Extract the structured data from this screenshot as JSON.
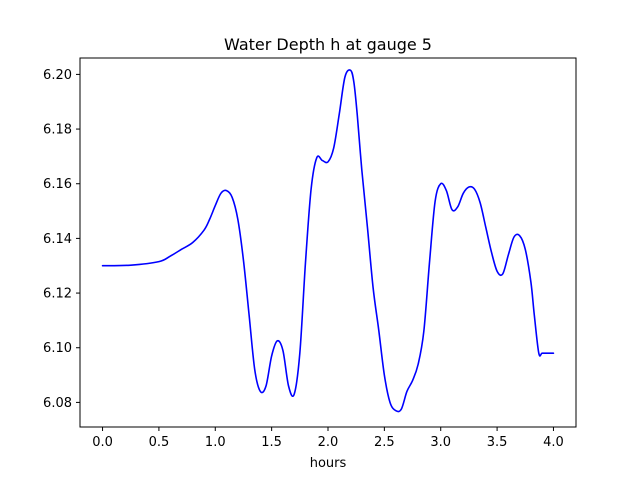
{
  "chart_data": {
    "type": "line",
    "title": "Water Depth h at gauge 5",
    "xlabel": "hours",
    "ylabel": "",
    "xlim": [
      -0.2,
      4.2
    ],
    "ylim": [
      6.071,
      6.206
    ],
    "xticks": [
      0.0,
      0.5,
      1.0,
      1.5,
      2.0,
      2.5,
      3.0,
      3.5,
      4.0
    ],
    "xtick_labels": [
      "0.0",
      "0.5",
      "1.0",
      "1.5",
      "2.0",
      "2.5",
      "3.0",
      "3.5",
      "4.0"
    ],
    "yticks": [
      6.08,
      6.1,
      6.12,
      6.14,
      6.16,
      6.18,
      6.2
    ],
    "ytick_labels": [
      "6.08",
      "6.10",
      "6.12",
      "6.14",
      "6.16",
      "6.18",
      "6.20"
    ],
    "grid": false,
    "series": [
      {
        "color": "#0000ff",
        "x": [
          0.0,
          0.25,
          0.5,
          0.6,
          0.7,
          0.8,
          0.9,
          0.95,
          1.0,
          1.05,
          1.1,
          1.15,
          1.2,
          1.25,
          1.3,
          1.35,
          1.4,
          1.45,
          1.5,
          1.55,
          1.6,
          1.65,
          1.7,
          1.75,
          1.8,
          1.85,
          1.9,
          1.95,
          2.0,
          2.05,
          2.1,
          2.15,
          2.2,
          2.23,
          2.26,
          2.3,
          2.35,
          2.4,
          2.45,
          2.5,
          2.55,
          2.6,
          2.65,
          2.7,
          2.75,
          2.8,
          2.85,
          2.9,
          2.95,
          3.0,
          3.05,
          3.1,
          3.15,
          3.2,
          3.25,
          3.3,
          3.35,
          3.4,
          3.45,
          3.5,
          3.55,
          3.6,
          3.65,
          3.7,
          3.75,
          3.8,
          3.83,
          3.87,
          3.9,
          3.95,
          4.0
        ],
        "y": [
          6.13,
          6.1302,
          6.1315,
          6.1335,
          6.136,
          6.1385,
          6.143,
          6.147,
          6.152,
          6.1565,
          6.1575,
          6.155,
          6.147,
          6.132,
          6.112,
          6.092,
          6.084,
          6.086,
          6.097,
          6.1025,
          6.099,
          6.086,
          6.083,
          6.098,
          6.131,
          6.158,
          6.1695,
          6.1685,
          6.168,
          6.173,
          6.1855,
          6.199,
          6.2015,
          6.197,
          6.185,
          6.165,
          6.144,
          6.122,
          6.1065,
          6.09,
          6.08,
          6.077,
          6.0775,
          6.084,
          6.088,
          6.094,
          6.106,
          6.131,
          6.1535,
          6.16,
          6.1575,
          6.1505,
          6.1515,
          6.1565,
          6.1588,
          6.158,
          6.153,
          6.144,
          6.135,
          6.128,
          6.127,
          6.134,
          6.1405,
          6.141,
          6.136,
          6.124,
          6.112,
          6.098,
          6.098,
          6.098,
          6.098
        ]
      }
    ]
  }
}
